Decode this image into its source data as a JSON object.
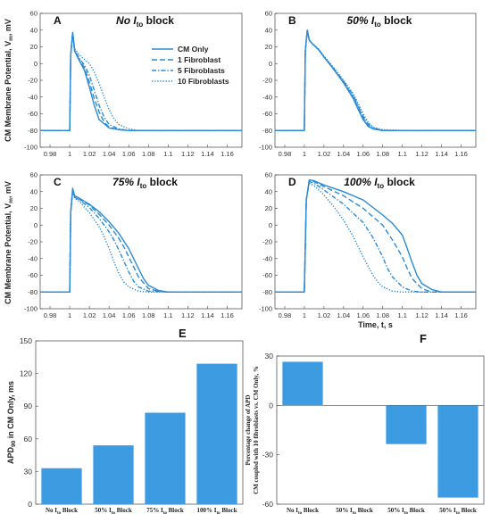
{
  "shared": {
    "ylabel_left": "CM Membrane Potential, V",
    "ylabel_left_sub": "m",
    "ylabel_left_unit": ", mV",
    "xlabel_bottom": "Time, t, s",
    "trace_color": "#2a8ad6"
  },
  "chart_data": [
    {
      "id": "A",
      "type": "line",
      "panel_label": "A",
      "title": "No I",
      "title_sub": "to",
      "title_end": " block",
      "xlim": [
        0.97,
        1.175
      ],
      "ylim": [
        -100,
        60
      ],
      "xticks": [
        0.98,
        1,
        1.02,
        1.04,
        1.06,
        1.08,
        1.1,
        1.12,
        1.14,
        1.16
      ],
      "xtick_labels": [
        "0.98",
        "1",
        "1.02",
        "1.04",
        "1.06",
        "1.08",
        "1.1",
        "1.12",
        "1.14",
        "1.16"
      ],
      "yticks": [
        -100,
        -80,
        -60,
        -40,
        -20,
        0,
        20,
        40,
        60
      ],
      "ytick_labels": [
        "-100",
        "-80",
        "-60",
        "-40",
        "-20",
        "0",
        "20",
        "40",
        "60"
      ],
      "legend": {
        "placement": "top-right",
        "entries": [
          "CM Only",
          "1 Fibroblast",
          "5 Fibroblasts",
          "10 Fibroblasts"
        ]
      },
      "series": [
        {
          "name": "CM Only",
          "style": "solid",
          "x": [
            0.97,
            1.0,
            1.001,
            1.003,
            1.005,
            1.01,
            1.015,
            1.02,
            1.025,
            1.03,
            1.04,
            1.05,
            1.06,
            1.1,
            1.175
          ],
          "y": [
            -80,
            -80,
            10,
            37,
            15,
            3,
            -8,
            -28,
            -50,
            -67,
            -77,
            -79,
            -80,
            -80,
            -80
          ]
        },
        {
          "name": "1 Fibroblast",
          "style": "dash",
          "x": [
            0.97,
            1.0,
            1.001,
            1.003,
            1.005,
            1.01,
            1.015,
            1.02,
            1.025,
            1.03,
            1.035,
            1.04,
            1.05,
            1.06,
            1.1,
            1.175
          ],
          "y": [
            -80,
            -80,
            10,
            37,
            15,
            4,
            -5,
            -22,
            -42,
            -58,
            -70,
            -76,
            -79,
            -80,
            -80,
            -80
          ]
        },
        {
          "name": "5 Fibroblasts",
          "style": "dashdot",
          "x": [
            0.97,
            1.0,
            1.001,
            1.003,
            1.005,
            1.01,
            1.015,
            1.02,
            1.025,
            1.03,
            1.035,
            1.04,
            1.05,
            1.06,
            1.1,
            1.175
          ],
          "y": [
            -80,
            -80,
            10,
            37,
            16,
            6,
            -2,
            -14,
            -32,
            -50,
            -64,
            -73,
            -78,
            -80,
            -80,
            -80
          ]
        },
        {
          "name": "10 Fibroblasts",
          "style": "dot",
          "x": [
            0.97,
            1.0,
            1.001,
            1.003,
            1.005,
            1.01,
            1.02,
            1.025,
            1.03,
            1.035,
            1.04,
            1.045,
            1.05,
            1.06,
            1.07,
            1.1,
            1.175
          ],
          "y": [
            -80,
            -80,
            10,
            37,
            18,
            10,
            0,
            -10,
            -24,
            -40,
            -55,
            -66,
            -73,
            -78,
            -80,
            -80,
            -80
          ]
        }
      ]
    },
    {
      "id": "B",
      "type": "line",
      "panel_label": "B",
      "title": "50% I",
      "title_sub": "to",
      "title_end": " block",
      "xlim": [
        0.97,
        1.175
      ],
      "ylim": [
        -100,
        60
      ],
      "xticks": [
        0.98,
        1,
        1.02,
        1.04,
        1.06,
        1.08,
        1.1,
        1.12,
        1.14,
        1.16
      ],
      "xtick_labels": [
        "0.98",
        "1",
        "1.02",
        "1.04",
        "1.06",
        "1.08",
        "1.1",
        "1.12",
        "1.14",
        "1.16"
      ],
      "yticks": [
        -100,
        -80,
        -60,
        -40,
        -20,
        0,
        20,
        40,
        60
      ],
      "ytick_labels": [
        "-100",
        "-80",
        "-60",
        "-40",
        "-20",
        "0",
        "20",
        "40",
        "60"
      ],
      "series": [
        {
          "name": "CM Only",
          "style": "solid",
          "x": [
            0.97,
            1.0,
            1.001,
            1.003,
            1.005,
            1.008,
            1.015,
            1.02,
            1.03,
            1.04,
            1.05,
            1.055,
            1.06,
            1.065,
            1.07,
            1.08,
            1.1,
            1.175
          ],
          "y": [
            -80,
            -80,
            15,
            40,
            28,
            24,
            16,
            8,
            -7,
            -23,
            -42,
            -55,
            -67,
            -75,
            -78,
            -80,
            -80,
            -80
          ]
        },
        {
          "name": "1 Fibroblast",
          "style": "dash",
          "x": [
            0.97,
            1.0,
            1.001,
            1.003,
            1.005,
            1.008,
            1.015,
            1.02,
            1.03,
            1.04,
            1.05,
            1.055,
            1.06,
            1.065,
            1.07,
            1.08,
            1.1,
            1.175
          ],
          "y": [
            -80,
            -80,
            15,
            40,
            28,
            24,
            16,
            8,
            -7,
            -22,
            -40,
            -53,
            -65,
            -74,
            -78,
            -80,
            -80,
            -80
          ]
        },
        {
          "name": "5 Fibroblasts",
          "style": "dashdot",
          "x": [
            0.97,
            1.0,
            1.001,
            1.003,
            1.005,
            1.008,
            1.015,
            1.02,
            1.03,
            1.04,
            1.05,
            1.055,
            1.06,
            1.065,
            1.07,
            1.08,
            1.1,
            1.175
          ],
          "y": [
            -80,
            -80,
            15,
            40,
            28,
            24,
            16,
            8,
            -6,
            -21,
            -38,
            -51,
            -63,
            -72,
            -77,
            -80,
            -80,
            -80
          ]
        },
        {
          "name": "10 Fibroblasts",
          "style": "dot",
          "x": [
            0.97,
            1.0,
            1.001,
            1.003,
            1.005,
            1.008,
            1.015,
            1.02,
            1.03,
            1.04,
            1.05,
            1.055,
            1.06,
            1.065,
            1.07,
            1.08,
            1.1,
            1.175
          ],
          "y": [
            -80,
            -80,
            15,
            40,
            28,
            24,
            17,
            9,
            -5,
            -20,
            -36,
            -48,
            -60,
            -70,
            -76,
            -79,
            -80,
            -80
          ]
        }
      ]
    },
    {
      "id": "C",
      "type": "line",
      "panel_label": "C",
      "title": "75% I",
      "title_sub": "to",
      "title_end": " block",
      "xlim": [
        0.97,
        1.175
      ],
      "ylim": [
        -100,
        60
      ],
      "xticks": [
        0.98,
        1,
        1.02,
        1.04,
        1.06,
        1.08,
        1.1,
        1.12,
        1.14,
        1.16
      ],
      "xtick_labels": [
        "0.98",
        "1",
        "1.02",
        "1.04",
        "1.06",
        "1.08",
        "1.1",
        "1.12",
        "1.14",
        "1.16"
      ],
      "yticks": [
        -100,
        -80,
        -60,
        -40,
        -20,
        0,
        20,
        40,
        60
      ],
      "ytick_labels": [
        "-100",
        "-80",
        "-60",
        "-40",
        "-20",
        "0",
        "20",
        "40",
        "60"
      ],
      "series": [
        {
          "name": "CM Only",
          "style": "solid",
          "x": [
            0.97,
            1.0,
            1.001,
            1.003,
            1.005,
            1.01,
            1.02,
            1.03,
            1.04,
            1.05,
            1.06,
            1.065,
            1.07,
            1.075,
            1.08,
            1.09,
            1.1,
            1.175
          ],
          "y": [
            -80,
            -80,
            15,
            44,
            35,
            32,
            25,
            16,
            4,
            -10,
            -28,
            -40,
            -52,
            -64,
            -72,
            -78,
            -80,
            -80
          ]
        },
        {
          "name": "1 Fibroblast",
          "style": "dash",
          "x": [
            0.97,
            1.0,
            1.001,
            1.003,
            1.005,
            1.01,
            1.02,
            1.03,
            1.04,
            1.05,
            1.055,
            1.06,
            1.065,
            1.07,
            1.08,
            1.09,
            1.1,
            1.175
          ],
          "y": [
            -80,
            -80,
            15,
            43,
            34,
            31,
            24,
            13,
            0,
            -16,
            -26,
            -38,
            -50,
            -62,
            -76,
            -79,
            -80,
            -80
          ]
        },
        {
          "name": "5 Fibroblasts",
          "style": "dashdot",
          "x": [
            0.97,
            1.0,
            1.001,
            1.003,
            1.005,
            1.01,
            1.02,
            1.03,
            1.04,
            1.045,
            1.05,
            1.055,
            1.06,
            1.065,
            1.07,
            1.08,
            1.1,
            1.175
          ],
          "y": [
            -80,
            -80,
            15,
            42,
            33,
            30,
            21,
            8,
            -8,
            -18,
            -30,
            -43,
            -56,
            -67,
            -74,
            -79,
            -80,
            -80
          ]
        },
        {
          "name": "10 Fibroblasts",
          "style": "dot",
          "x": [
            0.97,
            1.0,
            1.001,
            1.003,
            1.005,
            1.01,
            1.02,
            1.03,
            1.035,
            1.04,
            1.045,
            1.05,
            1.055,
            1.06,
            1.07,
            1.08,
            1.1,
            1.175
          ],
          "y": [
            -80,
            -80,
            15,
            40,
            32,
            28,
            15,
            -2,
            -14,
            -28,
            -44,
            -58,
            -68,
            -74,
            -79,
            -80,
            -80,
            -80
          ]
        }
      ]
    },
    {
      "id": "D",
      "type": "line",
      "panel_label": "D",
      "title": "100% I",
      "title_sub": "to",
      "title_end": " block",
      "xlim": [
        0.97,
        1.175
      ],
      "ylim": [
        -100,
        60
      ],
      "xticks": [
        0.98,
        1,
        1.02,
        1.04,
        1.06,
        1.08,
        1.1,
        1.12,
        1.14,
        1.16
      ],
      "xtick_labels": [
        "0.98",
        "1",
        "1.02",
        "1.04",
        "1.06",
        "1.08",
        "1.1",
        "1.12",
        "1.14",
        "1.16"
      ],
      "yticks": [
        -100,
        -80,
        -60,
        -40,
        -20,
        0,
        20,
        40,
        60
      ],
      "ytick_labels": [
        "-100",
        "-80",
        "-60",
        "-40",
        "-20",
        "0",
        "20",
        "40",
        "60"
      ],
      "xlabel": "Time, t, s",
      "series": [
        {
          "name": "CM Only",
          "style": "solid",
          "x": [
            0.97,
            1.0,
            1.002,
            1.005,
            1.01,
            1.02,
            1.04,
            1.06,
            1.08,
            1.09,
            1.1,
            1.105,
            1.11,
            1.115,
            1.12,
            1.13,
            1.14,
            1.175
          ],
          "y": [
            -80,
            -80,
            30,
            54,
            53,
            48,
            40,
            30,
            12,
            2,
            -12,
            -28,
            -45,
            -60,
            -70,
            -77,
            -80,
            -80
          ]
        },
        {
          "name": "1 Fibroblast",
          "style": "dash",
          "x": [
            0.97,
            1.0,
            1.002,
            1.005,
            1.01,
            1.02,
            1.04,
            1.06,
            1.08,
            1.09,
            1.1,
            1.105,
            1.11,
            1.12,
            1.13,
            1.175
          ],
          "y": [
            -80,
            -80,
            30,
            53,
            52,
            46,
            35,
            20,
            0,
            -18,
            -38,
            -52,
            -64,
            -76,
            -80,
            -80
          ]
        },
        {
          "name": "5 Fibroblasts",
          "style": "dashdot",
          "x": [
            0.97,
            1.0,
            1.002,
            1.005,
            1.01,
            1.02,
            1.04,
            1.06,
            1.07,
            1.08,
            1.085,
            1.09,
            1.1,
            1.11,
            1.12,
            1.175
          ],
          "y": [
            -80,
            -80,
            30,
            52,
            50,
            42,
            25,
            3,
            -15,
            -38,
            -52,
            -62,
            -74,
            -79,
            -80,
            -80
          ]
        },
        {
          "name": "10 Fibroblasts",
          "style": "dot",
          "x": [
            0.97,
            1.0,
            1.002,
            1.005,
            1.01,
            1.02,
            1.03,
            1.04,
            1.05,
            1.06,
            1.07,
            1.075,
            1.08,
            1.09,
            1.1,
            1.175
          ],
          "y": [
            -80,
            -80,
            30,
            50,
            47,
            36,
            22,
            6,
            -14,
            -38,
            -60,
            -68,
            -74,
            -79,
            -80,
            -80
          ]
        }
      ]
    },
    {
      "id": "E",
      "type": "bar",
      "panel_label": "E",
      "ylabel": "APD",
      "ylabel_sub": "90",
      "ylabel_end": " in CM Only,  ms",
      "ylim": [
        0,
        150
      ],
      "yticks": [
        0,
        30,
        60,
        90,
        120,
        150
      ],
      "ytick_labels": [
        "0",
        "30",
        "60",
        "90",
        "120",
        "150"
      ],
      "categories": [
        {
          "pre": "No I",
          "sub": "to",
          "post": " Block"
        },
        {
          "pre": "50% I",
          "sub": "to",
          "post": " Block"
        },
        {
          "pre": "75% I",
          "sub": "to",
          "post": " Block"
        },
        {
          "pre": "100% I",
          "sub": "to",
          "post": " Block"
        }
      ],
      "values": [
        33,
        54,
        84,
        129
      ]
    },
    {
      "id": "F",
      "type": "bar",
      "panel_label": "F",
      "ylabel_line1": "Percentage change of APD",
      "ylabel_line2": "CM coupled with 10 fibroblasts vs. CM Only, %",
      "ylim": [
        -60,
        30
      ],
      "yticks": [
        -60,
        -30,
        0,
        30
      ],
      "ytick_labels": [
        "-60",
        "-30",
        "0",
        "30"
      ],
      "categories": [
        {
          "pre": "No I",
          "sub": "to",
          "post": " Block"
        },
        {
          "pre": "50% I",
          "sub": "to",
          "post": " Block"
        },
        {
          "pre": "50% I",
          "sub": "to",
          "post": " Block"
        },
        {
          "pre": "50% I",
          "sub": "to",
          "post": " Block"
        }
      ],
      "values": [
        26.5,
        0,
        -23.5,
        -56
      ]
    }
  ]
}
